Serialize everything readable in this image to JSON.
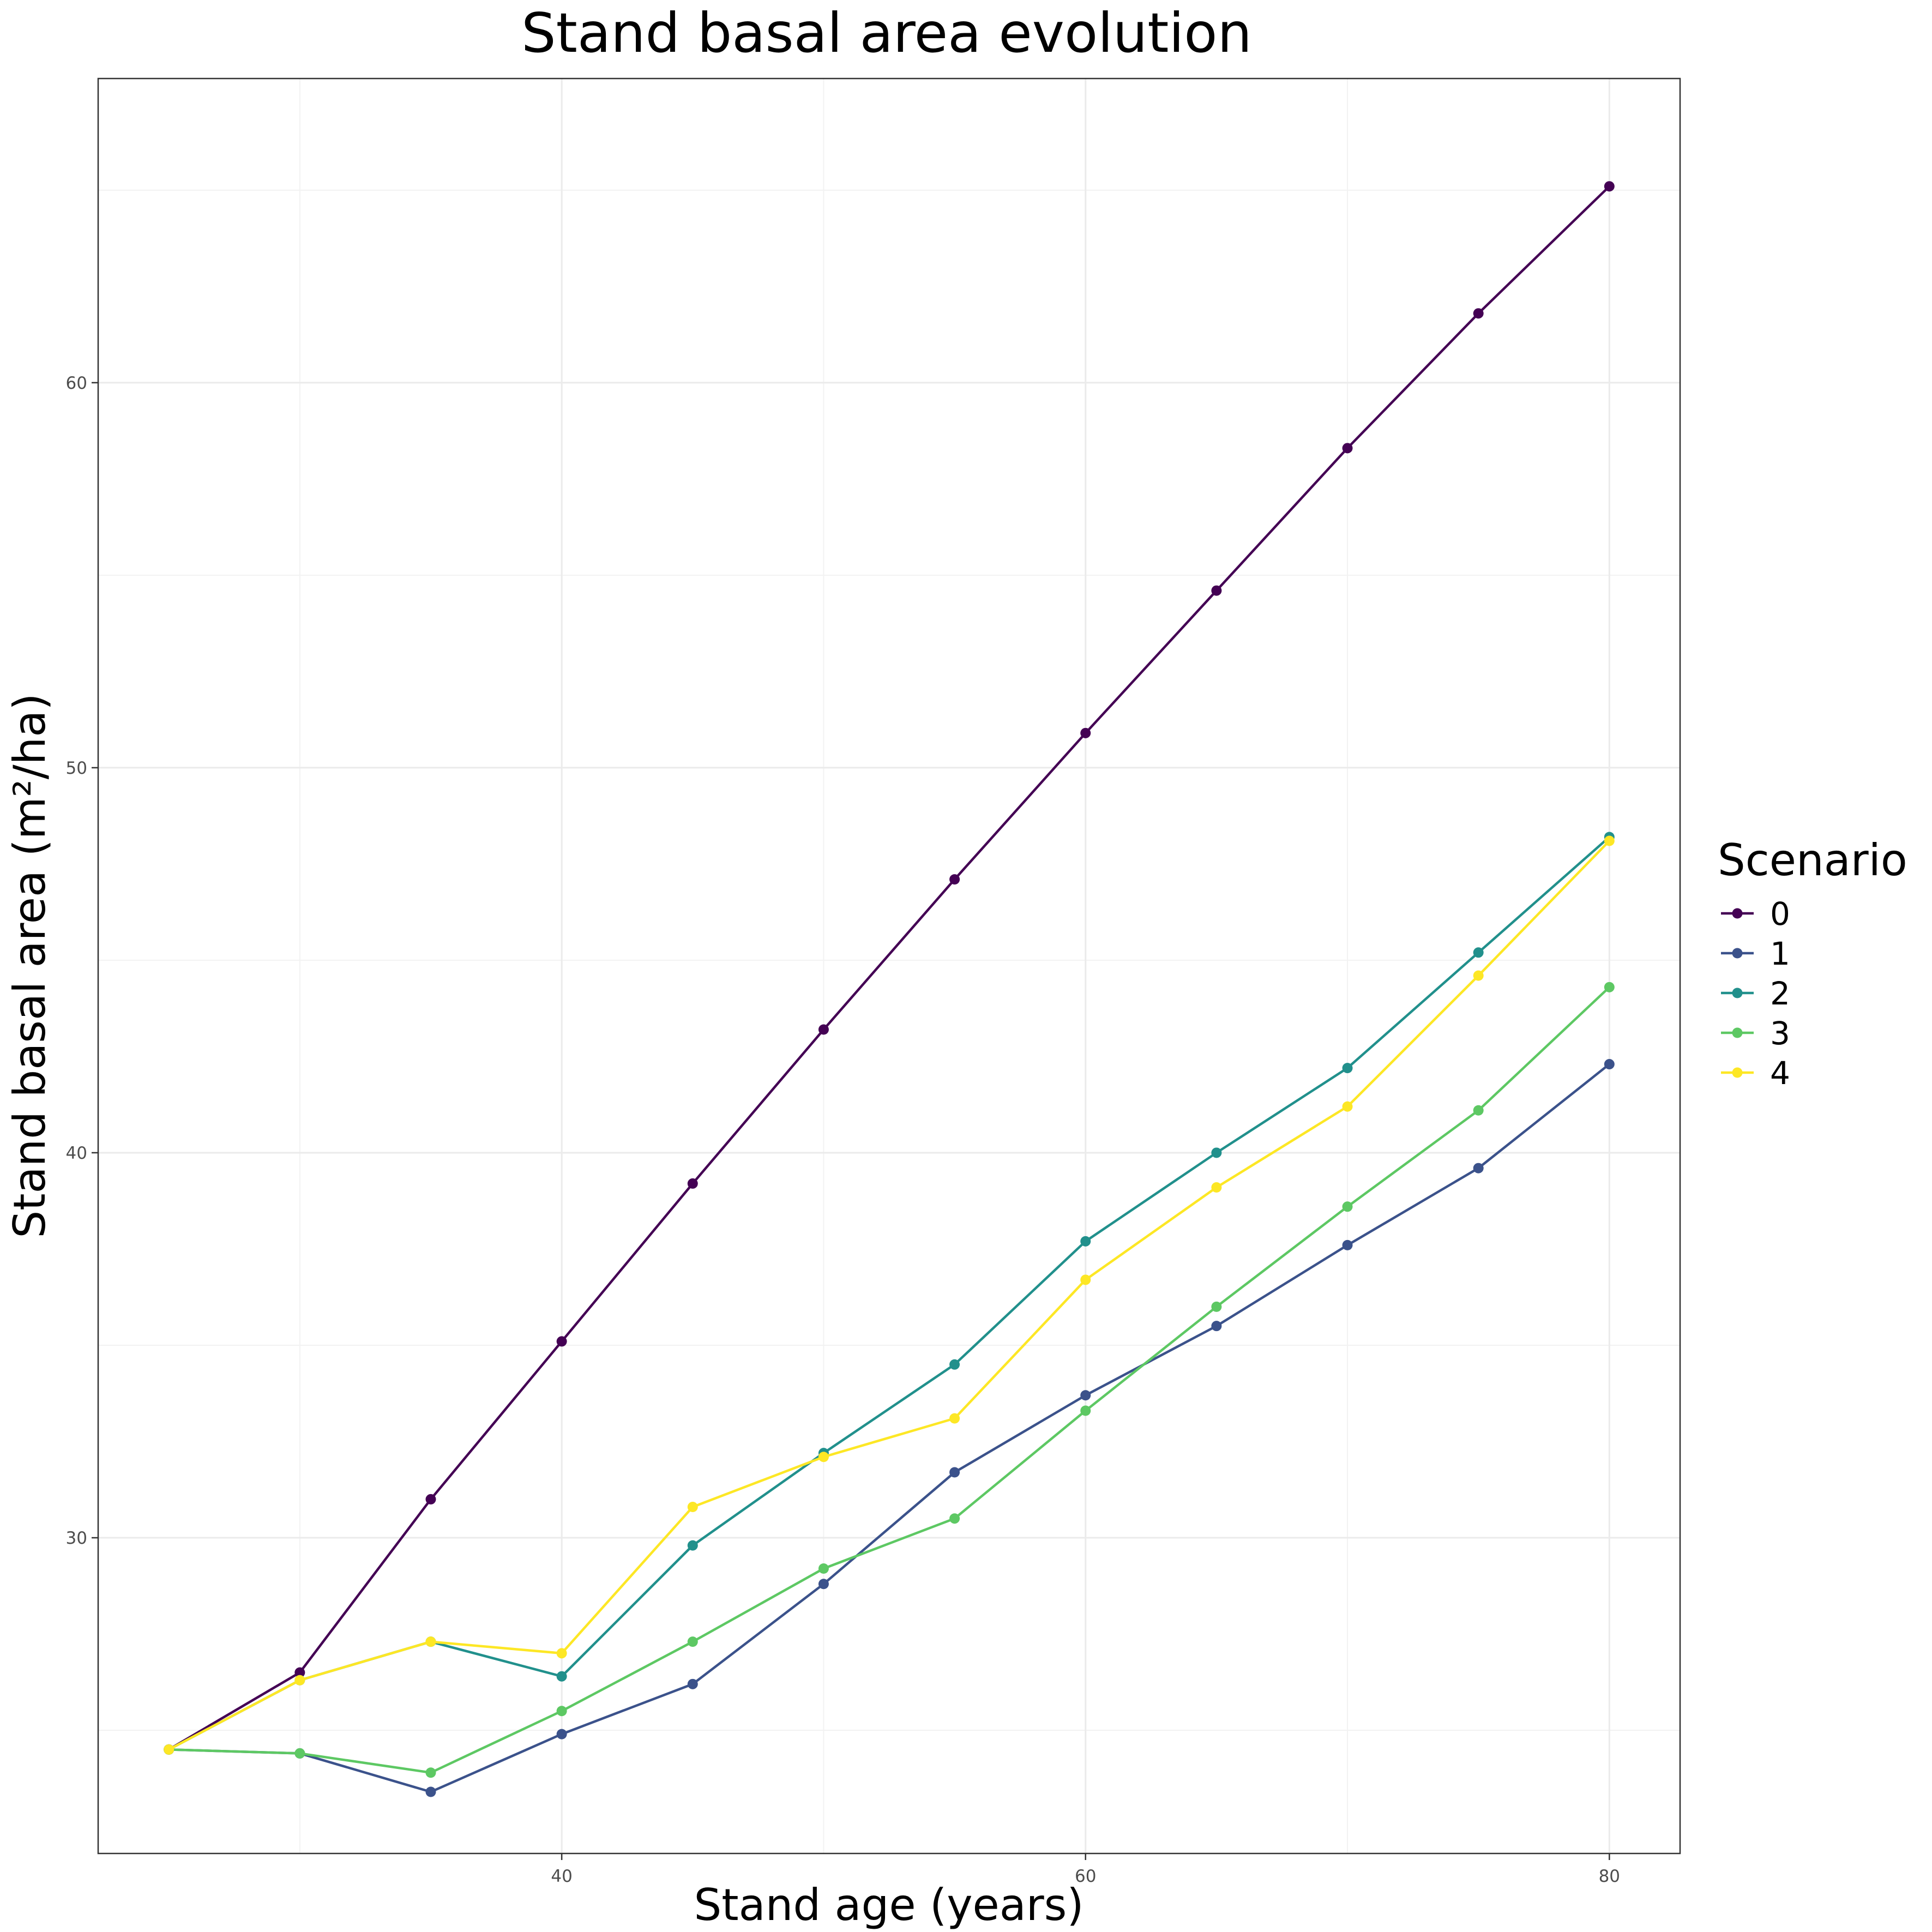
{
  "chart_data": {
    "type": "line",
    "title": "Stand basal area evolution",
    "xlabel": "Stand age (years)",
    "ylabel": "Stand basal area (m²/ha)",
    "xlim": [
      22.3,
      82.7
    ],
    "ylim": [
      21.8,
      67.9
    ],
    "x_ticks": [
      40,
      60,
      80
    ],
    "y_ticks": [
      30,
      40,
      50,
      60
    ],
    "grid": true,
    "legend": {
      "title": "Scenario",
      "position": "right"
    },
    "x": [
      25,
      30,
      35,
      40,
      45,
      50,
      55,
      60,
      65,
      70,
      75,
      80
    ],
    "series": [
      {
        "name": "0",
        "color": "#440154",
        "values": [
          24.5,
          26.5,
          31.0,
          35.1,
          39.2,
          43.2,
          47.1,
          50.9,
          54.6,
          58.3,
          61.8,
          65.1
        ]
      },
      {
        "name": "1",
        "color": "#3B528B",
        "values": [
          24.5,
          24.4,
          23.4,
          24.9,
          26.2,
          28.8,
          31.7,
          33.7,
          35.5,
          37.6,
          39.6,
          42.3
        ]
      },
      {
        "name": "2",
        "color": "#21908C",
        "values": [
          24.5,
          26.3,
          27.3,
          26.4,
          29.8,
          32.2,
          34.5,
          37.7,
          40.0,
          42.2,
          45.2,
          48.2
        ]
      },
      {
        "name": "3",
        "color": "#5DC863",
        "values": [
          24.5,
          24.4,
          23.9,
          25.5,
          27.3,
          29.2,
          30.5,
          33.3,
          36.0,
          38.6,
          41.1,
          44.3
        ]
      },
      {
        "name": "4",
        "color": "#FDE725",
        "values": [
          24.5,
          26.3,
          27.3,
          27.0,
          30.8,
          32.1,
          33.1,
          36.7,
          39.1,
          41.2,
          44.6,
          48.1
        ]
      }
    ]
  }
}
